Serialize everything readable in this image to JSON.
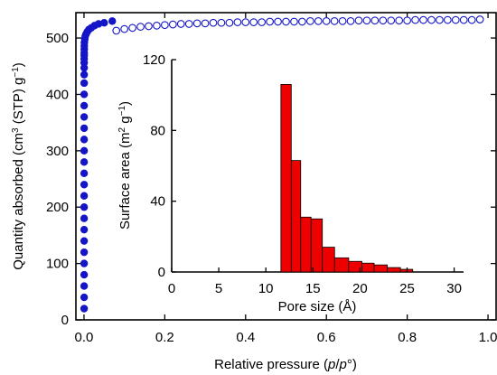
{
  "chart_data": [
    {
      "type": "scatter",
      "xlabel_parts": [
        "Relative pressure (",
        "p",
        "/",
        "p",
        "°)"
      ],
      "ylabel_parts": [
        "Quantity absorbed (cm",
        "3",
        " (STP) g",
        "−1",
        ")"
      ],
      "xlim": [
        -0.02,
        1.02
      ],
      "ylim": [
        0,
        545
      ],
      "xticks": [
        0.0,
        0.2,
        0.4,
        0.6,
        0.8,
        1.0
      ],
      "xtick_labels": [
        "0.0",
        "0.2",
        "0.4",
        "0.6",
        "0.8",
        "1.0"
      ],
      "yticks": [
        0,
        100,
        200,
        300,
        400,
        500
      ],
      "ytick_labels": [
        "0",
        "100",
        "200",
        "300",
        "400",
        "500"
      ],
      "grid": false,
      "legend": false,
      "series": [
        {
          "kind": "adsorption",
          "marker": "filled-circle",
          "color": "#1414c8",
          "x": [
            0.0004,
            0.0004,
            0.0004,
            0.0004,
            0.0004,
            0.0004,
            0.0004,
            0.0004,
            0.0004,
            0.0004,
            0.0004,
            0.0004,
            0.0004,
            0.0004,
            0.0004,
            0.0004,
            0.0004,
            0.0004,
            0.0004,
            0.0004,
            0.0005,
            0.0005,
            0.0005,
            0.0005,
            0.0005,
            0.0006,
            0.0006,
            0.0007,
            0.0008,
            0.001,
            0.002,
            0.003,
            0.005,
            0.008,
            0.012,
            0.018,
            0.026,
            0.036,
            0.05,
            0.07
          ],
          "y": [
            20,
            40,
            60,
            80,
            100,
            120,
            140,
            160,
            180,
            200,
            220,
            240,
            260,
            280,
            300,
            320,
            340,
            360,
            380,
            400,
            420,
            435,
            447,
            456,
            463,
            469,
            474,
            480,
            486,
            492,
            498,
            503,
            507,
            511,
            515,
            518,
            522,
            525,
            527,
            530
          ]
        },
        {
          "kind": "desorption",
          "marker": "open-circle",
          "color": "#1414c8",
          "x": [
            0.08,
            0.1,
            0.12,
            0.14,
            0.16,
            0.18,
            0.2,
            0.22,
            0.24,
            0.26,
            0.28,
            0.3,
            0.32,
            0.34,
            0.36,
            0.38,
            0.4,
            0.42,
            0.44,
            0.46,
            0.48,
            0.5,
            0.52,
            0.54,
            0.56,
            0.58,
            0.6,
            0.62,
            0.64,
            0.66,
            0.68,
            0.7,
            0.72,
            0.74,
            0.76,
            0.78,
            0.8,
            0.82,
            0.84,
            0.86,
            0.88,
            0.9,
            0.92,
            0.94,
            0.96,
            0.98
          ],
          "y": [
            513,
            516,
            518,
            520,
            521,
            522,
            523,
            524,
            525,
            525,
            526,
            526,
            527,
            527,
            527,
            528,
            528,
            528,
            528,
            529,
            529,
            529,
            529,
            529,
            530,
            530,
            530,
            530,
            530,
            530,
            531,
            531,
            531,
            531,
            531,
            531,
            531,
            532,
            532,
            532,
            532,
            532,
            532,
            532,
            532,
            533
          ]
        }
      ]
    },
    {
      "type": "bar",
      "inset": true,
      "xlabel": "Pore size (Å)",
      "ylabel_parts": [
        "Surface area (m",
        "2",
        " g",
        "−1",
        ")"
      ],
      "xlim": [
        0,
        31
      ],
      "ylim": [
        0,
        120
      ],
      "xticks": [
        0,
        5,
        10,
        15,
        20,
        25,
        30
      ],
      "xtick_labels": [
        "0",
        "5",
        "10",
        "15",
        "20",
        "25",
        "30"
      ],
      "yticks": [
        0,
        40,
        80,
        120
      ],
      "ytick_labels": [
        "0",
        "40",
        "80",
        "120"
      ],
      "bar_color": "#ee0000",
      "bars": [
        {
          "x0": 11.6,
          "x1": 12.7,
          "value": 106
        },
        {
          "x0": 12.7,
          "x1": 13.7,
          "value": 63
        },
        {
          "x0": 13.7,
          "x1": 14.8,
          "value": 31
        },
        {
          "x0": 14.8,
          "x1": 16.0,
          "value": 30
        },
        {
          "x0": 16.0,
          "x1": 17.3,
          "value": 14
        },
        {
          "x0": 17.3,
          "x1": 18.8,
          "value": 8
        },
        {
          "x0": 18.8,
          "x1": 20.2,
          "value": 6
        },
        {
          "x0": 20.2,
          "x1": 21.5,
          "value": 5
        },
        {
          "x0": 21.5,
          "x1": 22.9,
          "value": 4
        },
        {
          "x0": 22.9,
          "x1": 24.3,
          "value": 2.5
        },
        {
          "x0": 24.3,
          "x1": 25.6,
          "value": 1.5
        }
      ]
    }
  ]
}
